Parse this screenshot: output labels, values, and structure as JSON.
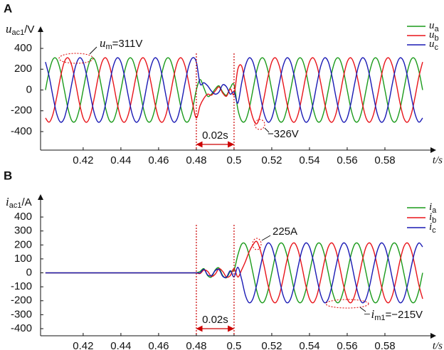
{
  "chart_data": [
    {
      "type": "line",
      "panel_label": "A",
      "y_label": {
        "main": "u",
        "sub": "ac1",
        "unit": "/V"
      },
      "x_label": "t/s",
      "xlim": [
        0.3974,
        0.6068
      ],
      "ylim": [
        -578,
        578
      ],
      "xticks": [
        0.42,
        0.44,
        0.46,
        0.48,
        0.5,
        0.52,
        0.54,
        0.56,
        0.58
      ],
      "yticks": [
        -400,
        -200,
        0,
        200,
        400
      ],
      "fault_lines": [
        0.48,
        0.5
      ],
      "interval_label": "0.02s",
      "annotations": [
        [
          "u",
          "m",
          "=311V"
        ],
        [
          "−326V"
        ]
      ],
      "x": [
        0.4,
        0.402,
        0.404,
        0.406,
        0.408,
        0.41,
        0.412,
        0.414,
        0.416,
        0.418,
        0.42,
        0.422,
        0.424,
        0.426,
        0.428,
        0.43,
        0.432,
        0.434,
        0.436,
        0.438,
        0.44,
        0.442,
        0.444,
        0.446,
        0.448,
        0.45,
        0.452,
        0.454,
        0.456,
        0.458,
        0.46,
        0.462,
        0.464,
        0.466,
        0.468,
        0.47,
        0.472,
        0.474,
        0.476,
        0.478,
        0.48,
        0.482,
        0.484,
        0.486,
        0.488,
        0.49,
        0.492,
        0.494,
        0.496,
        0.498,
        0.5,
        0.502,
        0.504,
        0.506,
        0.508,
        0.51,
        0.512,
        0.514,
        0.516,
        0.518,
        0.52,
        0.522,
        0.524,
        0.526,
        0.528,
        0.53,
        0.532,
        0.534,
        0.536,
        0.538,
        0.54,
        0.542,
        0.544,
        0.546,
        0.548,
        0.55,
        0.552,
        0.554,
        0.556,
        0.558,
        0.56,
        0.562,
        0.564,
        0.566,
        0.568,
        0.57,
        0.572,
        0.574,
        0.576,
        0.578,
        0.58,
        0.582,
        0.584,
        0.586,
        0.588,
        0.59,
        0.592,
        0.594,
        0.596,
        0.598,
        0.6
      ],
      "series": [
        {
          "name": "u",
          "subscript": "a",
          "color": "#1a9a1a",
          "values": [
            0,
            183,
            296,
            296,
            183,
            0,
            -183,
            -296,
            -296,
            -183,
            0,
            183,
            296,
            296,
            183,
            0,
            -183,
            -296,
            -296,
            -183,
            0,
            183,
            296,
            296,
            183,
            0,
            -183,
            -296,
            -296,
            -183,
            0,
            183,
            296,
            296,
            183,
            0,
            -183,
            -296,
            -296,
            -183,
            0,
            100,
            20,
            -60,
            -40,
            10,
            40,
            -20,
            -50,
            20,
            50,
            -183,
            -296,
            -296,
            -183,
            0,
            183,
            296,
            296,
            183,
            0,
            -183,
            -296,
            -296,
            -183,
            0,
            183,
            296,
            296,
            183,
            0,
            -183,
            -296,
            -296,
            -183,
            0,
            183,
            296,
            296,
            183,
            0,
            -183,
            -296,
            -296,
            -183,
            0,
            183,
            296,
            296,
            183,
            0,
            -183,
            -296,
            -296,
            -183,
            0,
            183,
            296,
            296,
            183,
            0
          ]
        },
        {
          "name": "u",
          "subscript": "b",
          "color": "#e8141a",
          "values": [
            -269,
            -309,
            -231,
            -65,
            126,
            269,
            309,
            231,
            65,
            -126,
            -269,
            -309,
            -231,
            -65,
            126,
            269,
            309,
            231,
            65,
            -126,
            -269,
            -309,
            -231,
            -65,
            126,
            269,
            309,
            231,
            65,
            -126,
            -269,
            -309,
            -231,
            -65,
            126,
            269,
            309,
            231,
            65,
            -126,
            -269,
            -150,
            -80,
            -40,
            -50,
            -10,
            30,
            -30,
            -60,
            10,
            -40,
            200,
            231,
            65,
            -126,
            -269,
            -326,
            -231,
            -65,
            126,
            269,
            309,
            231,
            65,
            -126,
            -269,
            -309,
            -231,
            -65,
            126,
            269,
            309,
            231,
            65,
            -126,
            -269,
            -309,
            -231,
            -65,
            126,
            269,
            309,
            231,
            65,
            -126,
            -269,
            -309,
            -231,
            -65,
            126,
            269,
            309,
            231,
            65,
            -126,
            -269,
            -309,
            -231,
            -65,
            126,
            269
          ]
        },
        {
          "name": "u",
          "subscript": "c",
          "color": "#1a1ab4",
          "values": [
            269,
            126,
            -65,
            -231,
            -309,
            -269,
            -126,
            65,
            231,
            309,
            269,
            126,
            -65,
            -231,
            -309,
            -269,
            -126,
            65,
            231,
            309,
            269,
            126,
            -65,
            -231,
            -309,
            -269,
            -126,
            65,
            231,
            309,
            269,
            126,
            -65,
            -231,
            -309,
            -269,
            -126,
            65,
            231,
            309,
            269,
            60,
            70,
            40,
            -10,
            -40,
            -20,
            50,
            30,
            -40,
            -20,
            -126,
            65,
            231,
            309,
            269,
            126,
            -65,
            -231,
            -309,
            -269,
            -126,
            65,
            231,
            309,
            269,
            126,
            -65,
            -231,
            -309,
            -269,
            -126,
            65,
            231,
            309,
            269,
            126,
            -65,
            -231,
            -309,
            -269,
            -126,
            65,
            231,
            309,
            269,
            126,
            -65,
            -231,
            -309,
            -269,
            -126,
            65,
            231,
            309,
            269,
            126,
            -65,
            -231,
            -309,
            -269
          ]
        }
      ]
    },
    {
      "type": "line",
      "panel_label": "B",
      "y_label": {
        "main": "i",
        "sub": "ac1",
        "unit": "/A"
      },
      "x_label": "t/s",
      "xlim": [
        0.3974,
        0.6068
      ],
      "ylim": [
        -451,
        538
      ],
      "xticks": [
        0.42,
        0.44,
        0.46,
        0.48,
        0.5,
        0.52,
        0.54,
        0.56,
        0.58
      ],
      "yticks": [
        -400,
        -300,
        -200,
        -100,
        0,
        100,
        200,
        300,
        400
      ],
      "fault_lines": [
        0.48,
        0.5
      ],
      "interval_label": "0.02s",
      "annotations": [
        [
          "225A"
        ],
        [
          "−i",
          "m1",
          "=−215V"
        ]
      ],
      "x": [
        0.4,
        0.402,
        0.404,
        0.406,
        0.408,
        0.41,
        0.412,
        0.414,
        0.416,
        0.418,
        0.42,
        0.422,
        0.424,
        0.426,
        0.428,
        0.43,
        0.432,
        0.434,
        0.436,
        0.438,
        0.44,
        0.442,
        0.444,
        0.446,
        0.448,
        0.45,
        0.452,
        0.454,
        0.456,
        0.458,
        0.46,
        0.462,
        0.464,
        0.466,
        0.468,
        0.47,
        0.472,
        0.474,
        0.476,
        0.478,
        0.48,
        0.482,
        0.484,
        0.486,
        0.488,
        0.49,
        0.492,
        0.494,
        0.496,
        0.498,
        0.5,
        0.502,
        0.504,
        0.506,
        0.508,
        0.51,
        0.512,
        0.514,
        0.516,
        0.518,
        0.52,
        0.522,
        0.524,
        0.526,
        0.528,
        0.53,
        0.532,
        0.534,
        0.536,
        0.538,
        0.54,
        0.542,
        0.544,
        0.546,
        0.548,
        0.55,
        0.552,
        0.554,
        0.556,
        0.558,
        0.56,
        0.562,
        0.564,
        0.566,
        0.568,
        0.57,
        0.572,
        0.574,
        0.576,
        0.578,
        0.58,
        0.582,
        0.584,
        0.586,
        0.588,
        0.59,
        0.592,
        0.594,
        0.596,
        0.598,
        0.6
      ],
      "series": [
        {
          "name": "i",
          "subscript": "a",
          "color": "#1a9a1a",
          "values": [
            0,
            0,
            0,
            0,
            0,
            0,
            0,
            0,
            0,
            0,
            0,
            0,
            0,
            0,
            0,
            0,
            0,
            0,
            0,
            0,
            0,
            0,
            0,
            0,
            0,
            0,
            0,
            0,
            0,
            0,
            0,
            0,
            0,
            0,
            0,
            0,
            0,
            0,
            0,
            0,
            0,
            10,
            30,
            -20,
            -30,
            20,
            35,
            -20,
            -35,
            10,
            20,
            127,
            205,
            205,
            127,
            0,
            -127,
            -205,
            -205,
            -127,
            0,
            127,
            205,
            205,
            127,
            0,
            -127,
            -205,
            -205,
            -127,
            0,
            127,
            205,
            205,
            127,
            0,
            -127,
            -205,
            -205,
            -127,
            0,
            127,
            205,
            205,
            127,
            0,
            -127,
            -205,
            -205,
            -127,
            0,
            127,
            205,
            205,
            127,
            0,
            -127,
            -205,
            -205,
            -127,
            0
          ]
        },
        {
          "name": "i",
          "subscript": "b",
          "color": "#e8141a",
          "values": [
            0,
            0,
            0,
            0,
            0,
            0,
            0,
            0,
            0,
            0,
            0,
            0,
            0,
            0,
            0,
            0,
            0,
            0,
            0,
            0,
            0,
            0,
            0,
            0,
            0,
            0,
            0,
            0,
            0,
            0,
            0,
            0,
            0,
            0,
            0,
            0,
            0,
            0,
            0,
            0,
            0,
            -5,
            20,
            10,
            -25,
            -10,
            30,
            10,
            -30,
            -20,
            30,
            -30,
            20,
            80,
            150,
            200,
            225,
            160,
            45,
            -87,
            -186,
            -214,
            -160,
            -45,
            87,
            186,
            214,
            160,
            45,
            -87,
            -186,
            -214,
            -160,
            -45,
            87,
            186,
            214,
            160,
            45,
            -87,
            -186,
            -214,
            -160,
            -45,
            87,
            186,
            214,
            160,
            45,
            -87,
            -186,
            -214,
            -160,
            -45,
            87,
            186,
            214,
            160,
            45,
            -87,
            -186
          ]
        },
        {
          "name": "i",
          "subscript": "c",
          "color": "#1a1ab4",
          "values": [
            0,
            0,
            0,
            0,
            0,
            0,
            0,
            0,
            0,
            0,
            0,
            0,
            0,
            0,
            0,
            0,
            0,
            0,
            0,
            0,
            0,
            0,
            0,
            0,
            0,
            0,
            0,
            0,
            0,
            0,
            0,
            0,
            0,
            0,
            0,
            0,
            0,
            0,
            0,
            0,
            0,
            0,
            25,
            -15,
            -20,
            15,
            25,
            -25,
            -30,
            15,
            -30,
            40,
            -45,
            -160,
            -214,
            -186,
            -87,
            45,
            160,
            214,
            186,
            87,
            -45,
            -160,
            -214,
            -186,
            -87,
            45,
            160,
            214,
            186,
            87,
            -45,
            -160,
            -214,
            -186,
            -87,
            45,
            160,
            214,
            186,
            87,
            -45,
            -160,
            -214,
            -186,
            -87,
            45,
            160,
            214,
            186,
            87,
            -45,
            -160,
            -214,
            -186,
            -87,
            45,
            160,
            214,
            186
          ]
        }
      ]
    }
  ]
}
